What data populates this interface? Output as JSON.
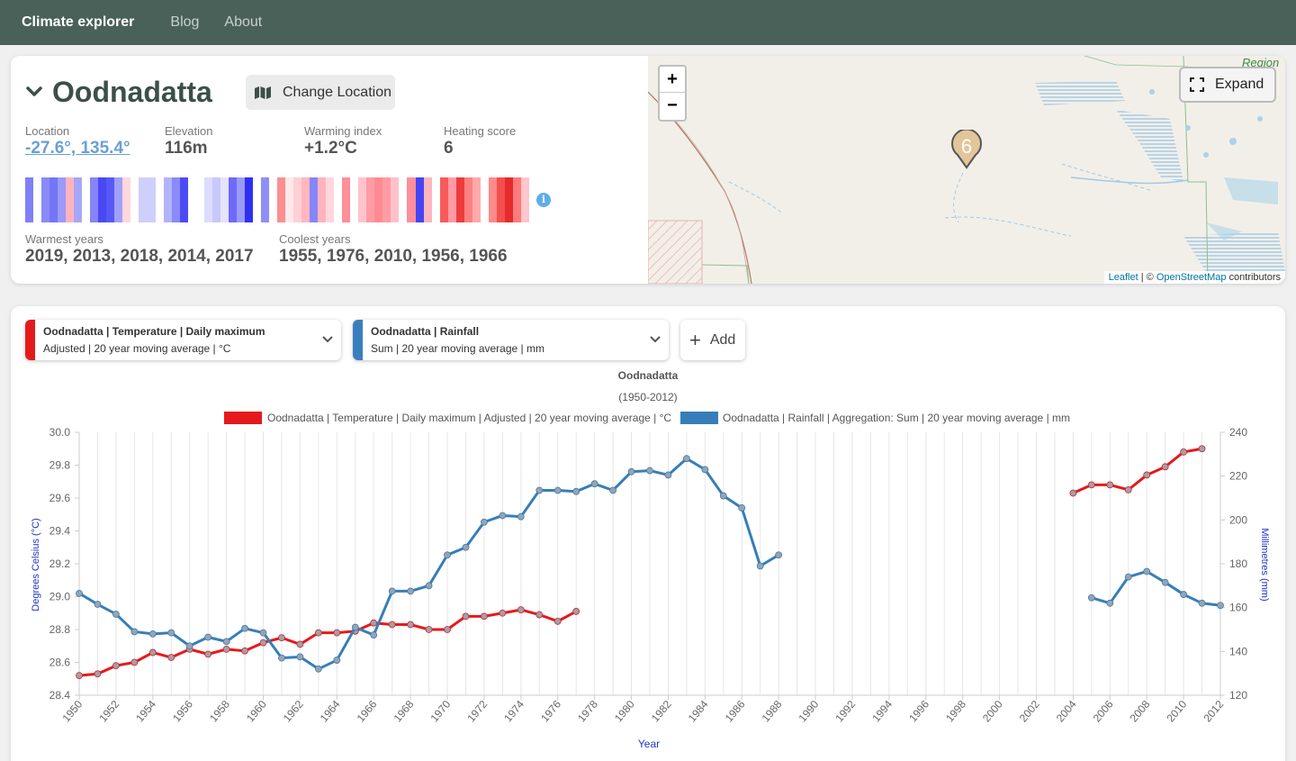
{
  "nav": {
    "brand": "Climate explorer",
    "links": [
      "Blog",
      "About"
    ]
  },
  "location": {
    "name": "Oodnadatta",
    "change_label": "Change Location",
    "stats": [
      {
        "label": "Location",
        "value": "-27.6°, 135.4°"
      },
      {
        "label": "Elevation",
        "value": "116m"
      },
      {
        "label": "Warming index",
        "value": "+1.2°C"
      },
      {
        "label": "Heating score",
        "value": "6"
      }
    ],
    "warmest_label": "Warmest years",
    "warmest_value": "2019, 2013, 2018, 2014, 2017",
    "coolest_label": "Coolest years",
    "coolest_value": "1955, 1976, 2010, 1956, 1966",
    "info_icon": "i",
    "stripe_colors": [
      "#8080f7",
      "#ffffff",
      "#8a8af8",
      "#7474f7",
      "#9a9afa",
      "#ffb3bd",
      "#a7a7fa",
      "#ffffff",
      "#8585f7",
      "#4848f5",
      "#5858f6",
      "#a0a0fa",
      "#ffd7dc",
      "#ffffff",
      "#cfcffc",
      "#cfcffc",
      "#ffffff",
      "#b3b3fb",
      "#8a8af8",
      "#4b4bf5",
      "#ffffff",
      "#ffffff",
      "#dcdcfd",
      "#c8c8fb",
      "#e4e4fd",
      "#6b6bf7",
      "#9a9afa",
      "#2f2ff4",
      "#ffffff",
      "#8f8ff9",
      "#ffffff",
      "#fc8f8f",
      "#ffe8eb",
      "#ffd0d5",
      "#ffb6bf",
      "#8686f8",
      "#ffb4bd",
      "#ffd7dc",
      "#ffffff",
      "#ff8f99",
      "#ffffff",
      "#ffc3cb",
      "#ff9ba4",
      "#ff8a94",
      "#ff9ba4",
      "#ffc1c9",
      "#ffffff",
      "#ff8f99",
      "#4545f5",
      "#ffb4bd",
      "#ffffff",
      "#f85a5a",
      "#ff9aa2",
      "#ee3c3c",
      "#ff8080",
      "#ffaaaa",
      "#ffffff",
      "#ff8a8a",
      "#f44e4e",
      "#e52c2c",
      "#ff7a7a",
      "#ffc6cc"
    ]
  },
  "map": {
    "expand_label": "Expand",
    "zoom_in": "+",
    "zoom_out": "−",
    "marker_count": "6",
    "region_label": "Region",
    "attribution_leaflet": "Leaflet",
    "attribution_sep": " | © ",
    "attribution_osm": "OpenStreetMap",
    "attribution_tail": " contributors"
  },
  "series_selectors": [
    {
      "title": "Oodnadatta | Temperature | Daily maximum",
      "subtitle": "Adjusted | 20 year moving average | °C",
      "color": "#e51b1b"
    },
    {
      "title": "Oodnadatta | Rainfall",
      "subtitle": "Sum | 20 year moving average | mm",
      "color": "#3a7fbd"
    }
  ],
  "add_label": "Add",
  "chart_data": {
    "type": "line",
    "title": "Oodnadatta",
    "subtitle": "(1950-2012)",
    "xlabel": "Year",
    "ylabel_left": "Degrees Celsius (°C)",
    "ylabel_right": "Millimetres (mm)",
    "xlim": [
      1950,
      2012
    ],
    "x_ticks": [
      1950,
      1952,
      1954,
      1956,
      1958,
      1960,
      1962,
      1964,
      1966,
      1968,
      1970,
      1972,
      1974,
      1976,
      1978,
      1980,
      1982,
      1984,
      1986,
      1988,
      1990,
      1992,
      1994,
      1996,
      1998,
      2000,
      2002,
      2004,
      2006,
      2008,
      2010,
      2012
    ],
    "ylim_left": [
      28.4,
      30.0
    ],
    "y_ticks_left": [
      "28.4",
      "28.6",
      "28.8",
      "29.0",
      "29.2",
      "29.4",
      "29.6",
      "29.8",
      "30.0"
    ],
    "ylim_right": [
      120,
      240
    ],
    "y_ticks_right": [
      "120",
      "140",
      "160",
      "180",
      "200",
      "220",
      "240"
    ],
    "grid": true,
    "legend_position": "top",
    "series": [
      {
        "name": "Oodnadatta | Temperature | Daily maximum | Adjusted | 20 year moving average | °C",
        "color": "#e41a1c",
        "axis": "left",
        "segments": [
          [
            [
              1950,
              28.52
            ],
            [
              1951,
              28.53
            ],
            [
              1952,
              28.58
            ],
            [
              1953,
              28.6
            ],
            [
              1954,
              28.66
            ],
            [
              1955,
              28.63
            ],
            [
              1956,
              28.68
            ],
            [
              1957,
              28.65
            ],
            [
              1958,
              28.68
            ],
            [
              1959,
              28.67
            ],
            [
              1960,
              28.72
            ],
            [
              1961,
              28.75
            ],
            [
              1962,
              28.71
            ],
            [
              1963,
              28.78
            ],
            [
              1964,
              28.78
            ],
            [
              1965,
              28.79
            ],
            [
              1966,
              28.84
            ],
            [
              1967,
              28.83
            ],
            [
              1968,
              28.83
            ],
            [
              1969,
              28.8
            ],
            [
              1970,
              28.8
            ],
            [
              1971,
              28.88
            ],
            [
              1972,
              28.88
            ],
            [
              1973,
              28.9
            ],
            [
              1974,
              28.92
            ],
            [
              1975,
              28.89
            ],
            [
              1976,
              28.85
            ],
            [
              1977,
              28.91
            ]
          ],
          [
            [
              2004,
              29.63
            ],
            [
              2005,
              29.68
            ],
            [
              2006,
              29.68
            ],
            [
              2007,
              29.65
            ],
            [
              2008,
              29.74
            ],
            [
              2009,
              29.79
            ],
            [
              2010,
              29.88
            ],
            [
              2011,
              29.9
            ]
          ]
        ]
      },
      {
        "name": "Oodnadatta | Rainfall | Aggregation: Sum | 20 year moving average | mm",
        "color": "#377eb8",
        "axis": "right",
        "segments": [
          [
            [
              1950,
              166.5
            ],
            [
              1951,
              161.5
            ],
            [
              1952,
              157
            ],
            [
              1953,
              149
            ],
            [
              1954,
              148
            ],
            [
              1955,
              148.5
            ],
            [
              1956,
              142.5
            ],
            [
              1957,
              146.5
            ],
            [
              1958,
              144.5
            ],
            [
              1959,
              150.5
            ],
            [
              1960,
              148.5
            ],
            [
              1961,
              137
            ],
            [
              1962,
              137.5
            ],
            [
              1963,
              132
            ],
            [
              1964,
              136
            ],
            [
              1965,
              151
            ],
            [
              1966,
              147.5
            ],
            [
              1967,
              167.5
            ],
            [
              1968,
              167.5
            ],
            [
              1969,
              170
            ],
            [
              1970,
              184
            ],
            [
              1971,
              187.5
            ],
            [
              1972,
              199
            ],
            [
              1973,
              202
            ],
            [
              1974,
              201.5
            ],
            [
              1975,
              213.5
            ],
            [
              1976,
              213.5
            ],
            [
              1977,
              213
            ],
            [
              1978,
              216.5
            ],
            [
              1979,
              213.5
            ],
            [
              1980,
              222
            ],
            [
              1981,
              222.5
            ],
            [
              1982,
              220.5
            ],
            [
              1983,
              228
            ],
            [
              1984,
              223
            ],
            [
              1985,
              211
            ],
            [
              1986,
              205.5
            ],
            [
              1987,
              179
            ],
            [
              1988,
              184
            ]
          ],
          [
            [
              2005,
              164.5
            ],
            [
              2006,
              162
            ],
            [
              2007,
              174
            ],
            [
              2008,
              176.5
            ],
            [
              2009,
              171.5
            ],
            [
              2010,
              166
            ],
            [
              2011,
              162
            ],
            [
              2012,
              161
            ]
          ]
        ]
      }
    ]
  }
}
